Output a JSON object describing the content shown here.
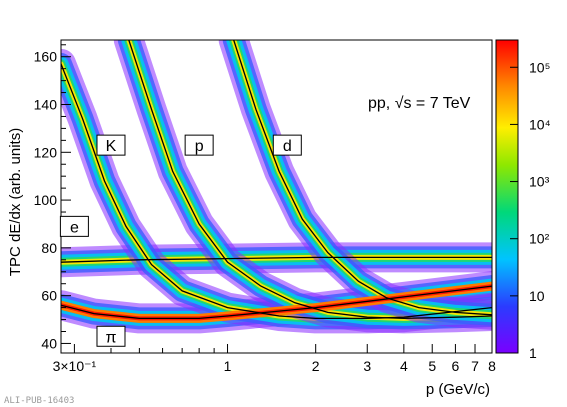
{
  "chart_data": {
    "type": "heatmap",
    "title": "",
    "annotation": "pp, √s = 7 TeV",
    "xlabel": "p (GeV/c)",
    "ylabel": "TPC dE/dx (arb. units)",
    "x_scale": "log",
    "xlim": [
      0.27,
      8
    ],
    "ylim": [
      36,
      167
    ],
    "x_ticks": [
      {
        "value": 0.3,
        "label": "3×10⁻¹"
      },
      {
        "value": 1,
        "label": "1"
      },
      {
        "value": 2,
        "label": "2"
      },
      {
        "value": 3,
        "label": "3"
      },
      {
        "value": 4,
        "label": "4"
      },
      {
        "value": 5,
        "label": "5"
      },
      {
        "value": 6,
        "label": "6"
      },
      {
        "value": 7,
        "label": "7"
      },
      {
        "value": 8,
        "label": "8"
      }
    ],
    "y_ticks": [
      40,
      60,
      80,
      100,
      120,
      140,
      160
    ],
    "colorbar": {
      "scale": "log",
      "range": [
        1,
        300000
      ],
      "ticks": [
        {
          "value": 1,
          "label": "1"
        },
        {
          "value": 10,
          "label": "10"
        },
        {
          "value": 100,
          "label": "10²"
        },
        {
          "value": 1000,
          "label": "10³"
        },
        {
          "value": 10000,
          "label": "10⁴"
        },
        {
          "value": 100000,
          "label": "10⁵"
        }
      ]
    },
    "series": [
      {
        "name": "e",
        "label_at": [
          0.3,
          89
        ],
        "points": [
          [
            0.27,
            74
          ],
          [
            0.5,
            75
          ],
          [
            1,
            75.5
          ],
          [
            2,
            76
          ],
          [
            4,
            76
          ],
          [
            8,
            76
          ]
        ]
      },
      {
        "name": "π",
        "label_at": [
          0.4,
          43
        ],
        "points": [
          [
            0.27,
            56
          ],
          [
            0.35,
            52.5
          ],
          [
            0.5,
            50.5
          ],
          [
            0.8,
            50.5
          ],
          [
            1,
            51.5
          ],
          [
            2,
            55
          ],
          [
            4,
            59.5
          ],
          [
            8,
            64
          ]
        ]
      },
      {
        "name": "K",
        "label_at": [
          0.4,
          123
        ],
        "points": [
          [
            0.27,
            157
          ],
          [
            0.32,
            134
          ],
          [
            0.38,
            108
          ],
          [
            0.45,
            89
          ],
          [
            0.55,
            73
          ],
          [
            0.7,
            62
          ],
          [
            1,
            55
          ],
          [
            1.5,
            51.5
          ],
          [
            2,
            50.5
          ],
          [
            3,
            50.5
          ],
          [
            4,
            51
          ],
          [
            8,
            55
          ]
        ]
      },
      {
        "name": "p",
        "label_at": [
          0.8,
          123
        ],
        "points": [
          [
            0.46,
            167
          ],
          [
            0.55,
            138
          ],
          [
            0.65,
            112
          ],
          [
            0.8,
            90
          ],
          [
            1,
            74
          ],
          [
            1.3,
            64
          ],
          [
            1.7,
            57
          ],
          [
            2.2,
            53
          ],
          [
            3,
            51
          ],
          [
            4,
            50.5
          ],
          [
            6,
            51
          ],
          [
            8,
            51.5
          ]
        ]
      },
      {
        "name": "d",
        "label_at": [
          1.6,
          123
        ],
        "points": [
          [
            1.05,
            167
          ],
          [
            1.25,
            138
          ],
          [
            1.5,
            112
          ],
          [
            1.8,
            92
          ],
          [
            2.2,
            78
          ],
          [
            2.8,
            66
          ],
          [
            3.5,
            59
          ],
          [
            4.5,
            55
          ],
          [
            6,
            53
          ],
          [
            8,
            52
          ]
        ]
      }
    ]
  },
  "footer": "ALI-PUB-16403"
}
